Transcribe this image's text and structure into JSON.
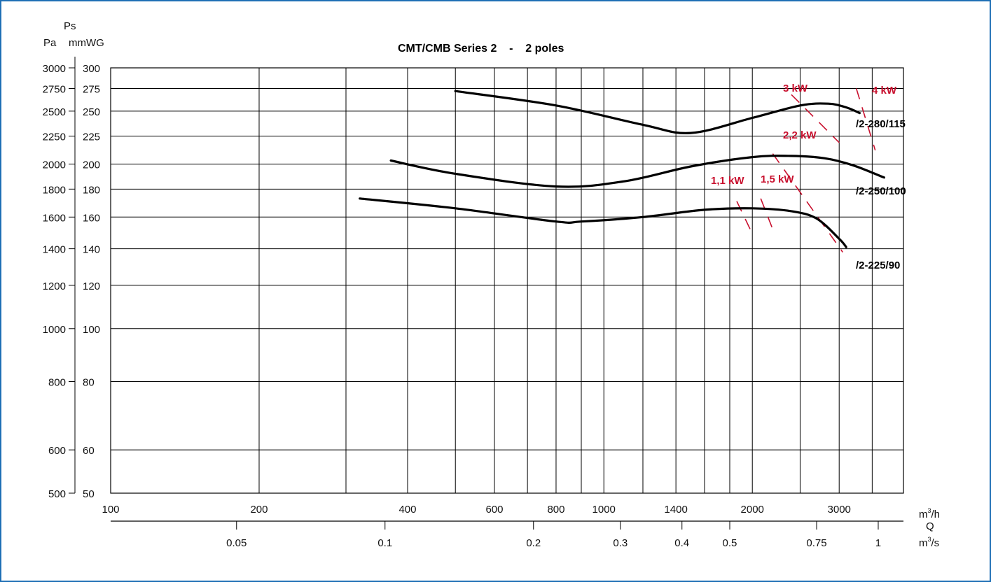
{
  "chart_data": {
    "type": "line",
    "title": "CMT/CMB Series 2    -    2 poles",
    "y_axis": {
      "symbol": "Ps",
      "left_unit": "Pa",
      "right_unit": "mmWG",
      "mmwg_ticks": [
        50,
        60,
        80,
        100,
        120,
        140,
        160,
        180,
        200,
        225,
        250,
        275,
        300
      ],
      "pa_ticks": [
        500,
        600,
        800,
        1000,
        1200,
        1400,
        1600,
        1800,
        2000,
        2250,
        2500,
        2750,
        3000
      ],
      "ylim_mmwg": [
        50,
        300
      ],
      "scale": "log"
    },
    "x_axis": {
      "symbol": "Q",
      "top_unit": "m3/h",
      "bottom_unit": "m3/s",
      "m3h_ticks": [
        100,
        200,
        400,
        600,
        800,
        1000,
        1400,
        2000,
        3000
      ],
      "m3s_ticks": [
        0.05,
        0.1,
        0.2,
        0.3,
        0.4,
        0.5,
        0.75,
        1
      ],
      "m3s_tick_labels": [
        "0.05",
        "0.1",
        "0.2",
        "0.3",
        "0.4",
        "0.5",
        "0.75",
        "1"
      ],
      "xlim_m3h": [
        100,
        4050
      ],
      "minor_lines_m3h": [
        300,
        500,
        700,
        900,
        1200,
        1600,
        1800,
        2500,
        3500
      ],
      "scale": "log"
    },
    "grid": true,
    "series": [
      {
        "name": "/2-280/115",
        "units": [
          "m3/h",
          "mmWG"
        ],
        "points": [
          [
            500,
            272
          ],
          [
            800,
            256
          ],
          [
            1200,
            236
          ],
          [
            1500,
            228
          ],
          [
            2000,
            243
          ],
          [
            2500,
            256
          ],
          [
            2850,
            258
          ],
          [
            3100,
            254
          ],
          [
            3300,
            248
          ]
        ]
      },
      {
        "name": "/2-250/100",
        "units": [
          "m3/h",
          "mmWG"
        ],
        "points": [
          [
            370,
            203
          ],
          [
            500,
            192
          ],
          [
            800,
            182
          ],
          [
            1100,
            186
          ],
          [
            1500,
            198
          ],
          [
            2000,
            206
          ],
          [
            2400,
            207
          ],
          [
            2800,
            205
          ],
          [
            3200,
            199
          ],
          [
            3700,
            189
          ]
        ]
      },
      {
        "name": "/2-225/90",
        "units": [
          "m3/h",
          "mmWG"
        ],
        "points": [
          [
            320,
            173
          ],
          [
            500,
            166
          ],
          [
            800,
            157
          ],
          [
            900,
            157
          ],
          [
            1200,
            160
          ],
          [
            1600,
            165
          ],
          [
            2000,
            166
          ],
          [
            2400,
            164
          ],
          [
            2700,
            159
          ],
          [
            3000,
            146
          ],
          [
            3100,
            141
          ]
        ]
      }
    ],
    "power_lines": [
      {
        "label": "1,1 kW",
        "points": [
          [
            1860,
            171
          ],
          [
            1980,
            152
          ]
        ]
      },
      {
        "label": "1,5 kW",
        "points": [
          [
            2080,
            173
          ],
          [
            2200,
            152
          ]
        ]
      },
      {
        "label": "2,2 kW",
        "points": [
          [
            2200,
            209
          ],
          [
            3050,
            138
          ]
        ]
      },
      {
        "label": "3 kW",
        "points": [
          [
            2400,
            268
          ],
          [
            3000,
            219
          ]
        ]
      },
      {
        "label": "4 kW",
        "points": [
          [
            3250,
            275
          ],
          [
            3550,
            212
          ]
        ]
      }
    ]
  }
}
